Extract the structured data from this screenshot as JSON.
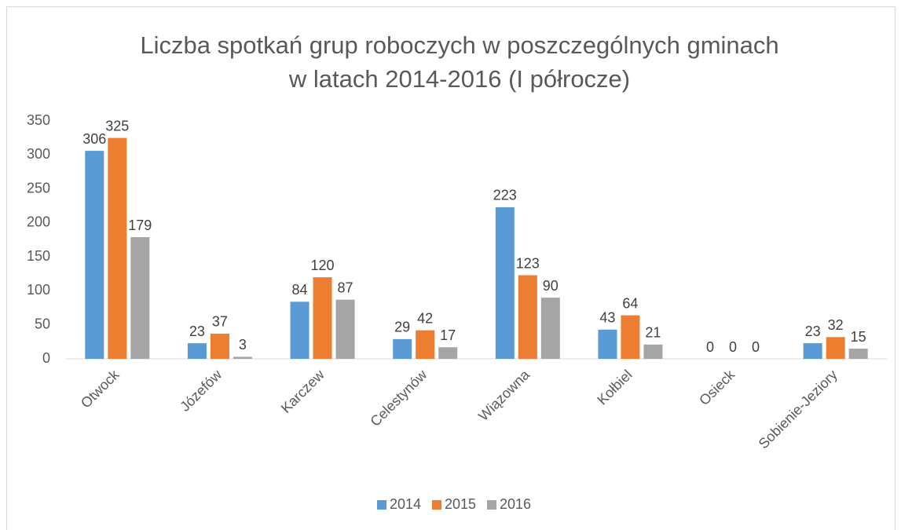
{
  "chart_data": {
    "type": "bar",
    "title": [
      "Liczba spotkań grup roboczych w poszczególnych gminach",
      "w latach 2014-2016 (I półrocze)"
    ],
    "categories": [
      "Otwock",
      "Józefów",
      "Karczew",
      "Celestynów",
      "Wiązowna",
      "Kołbiel",
      "Osieck",
      "Sobienie-Jeziory"
    ],
    "series": [
      {
        "name": "2014",
        "color": "#5b9bd5",
        "values": [
          306,
          23,
          84,
          29,
          223,
          43,
          0,
          23
        ]
      },
      {
        "name": "2015",
        "color": "#ed7d31",
        "values": [
          325,
          37,
          120,
          42,
          123,
          64,
          0,
          32
        ]
      },
      {
        "name": "2016",
        "color": "#a5a5a5",
        "values": [
          179,
          3,
          87,
          17,
          90,
          21,
          0,
          15
        ]
      }
    ],
    "ylim": [
      0,
      350
    ],
    "yticks": [
      0,
      50,
      100,
      150,
      200,
      250,
      300,
      350
    ],
    "grid": false,
    "legend": "bottom"
  }
}
